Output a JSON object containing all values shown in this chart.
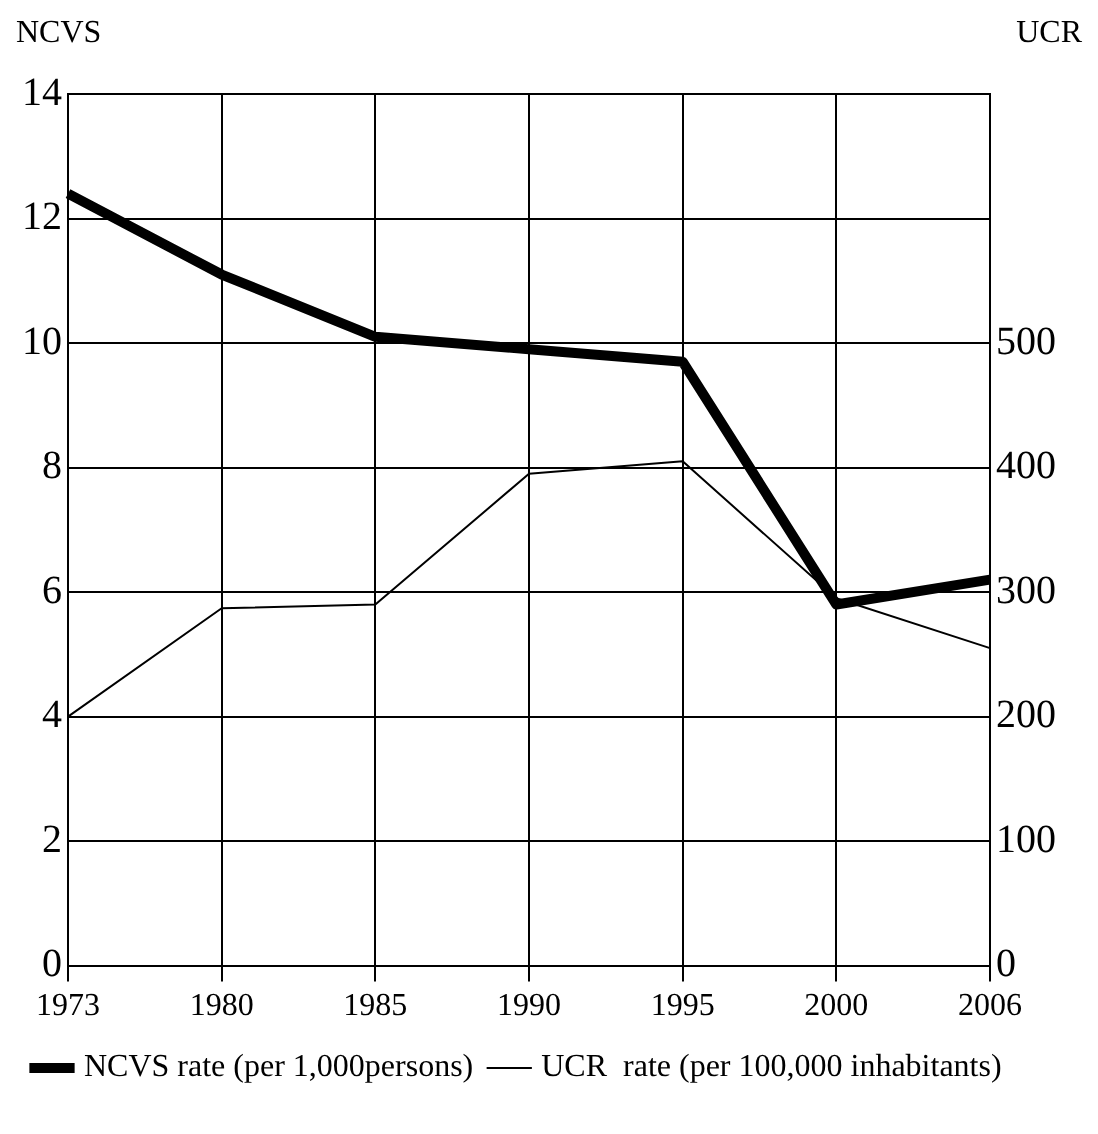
{
  "chart_data": {
    "type": "line",
    "ylabel": "NCVS",
    "y2label": "UCR",
    "categories": [
      "1973",
      "1980",
      "1985",
      "1990",
      "1995",
      "2000",
      "2006"
    ],
    "series": [
      {
        "name": "NCVS rate (per 1,000persons)",
        "color": "#000000",
        "values": [
          12.4,
          11.1,
          10.1,
          9.9,
          9.7,
          5.8,
          6.2
        ]
      },
      {
        "name": "UCR  rate (per 100,000 inhabitants)",
        "color": "#000000",
        "axis": "y2",
        "values": [
          200,
          287,
          290,
          395,
          405,
          295,
          255
        ]
      }
    ],
    "ylim": [
      0,
      14
    ],
    "yticks": [
      0,
      2,
      4,
      6,
      8,
      10,
      12,
      14
    ],
    "y2lim": [
      0,
      700
    ],
    "y2ticks": [
      0,
      100,
      200,
      300,
      400,
      500
    ],
    "grid": true,
    "legend": "bottom",
    "marker": "none",
    "line_style": "solid"
  }
}
